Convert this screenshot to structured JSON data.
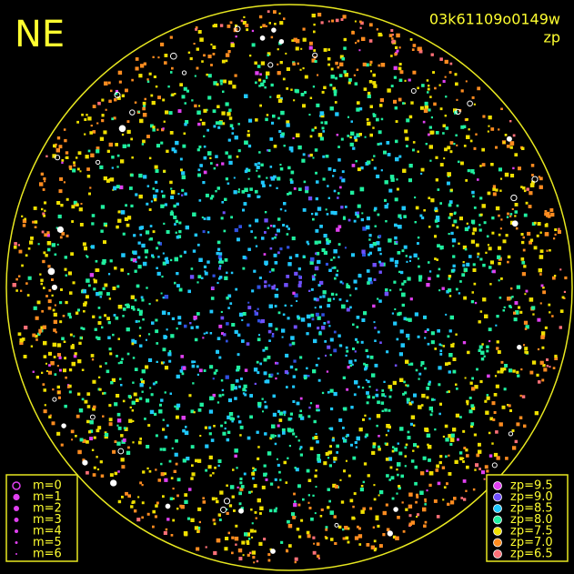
{
  "header": {
    "direction": "NE",
    "frame_id": "03k61109o0149w",
    "color_key": "zp"
  },
  "magnitude_legend": [
    "m=0",
    "m=1",
    "m=2",
    "m=3",
    "m=4",
    "m=5",
    "m=6"
  ],
  "zp_legend": [
    {
      "label": "zp=9.5",
      "color": "#e040f0"
    },
    {
      "label": "zp=9.0",
      "color": "#7050ff"
    },
    {
      "label": "zp=8.5",
      "color": "#20c8ff"
    },
    {
      "label": "zp=8.0",
      "color": "#20f0a0"
    },
    {
      "label": "zp=7.5",
      "color": "#f0e000"
    },
    {
      "label": "zp=7.0",
      "color": "#ff8c20"
    },
    {
      "label": "zp=6.5",
      "color": "#ff7078"
    }
  ]
}
